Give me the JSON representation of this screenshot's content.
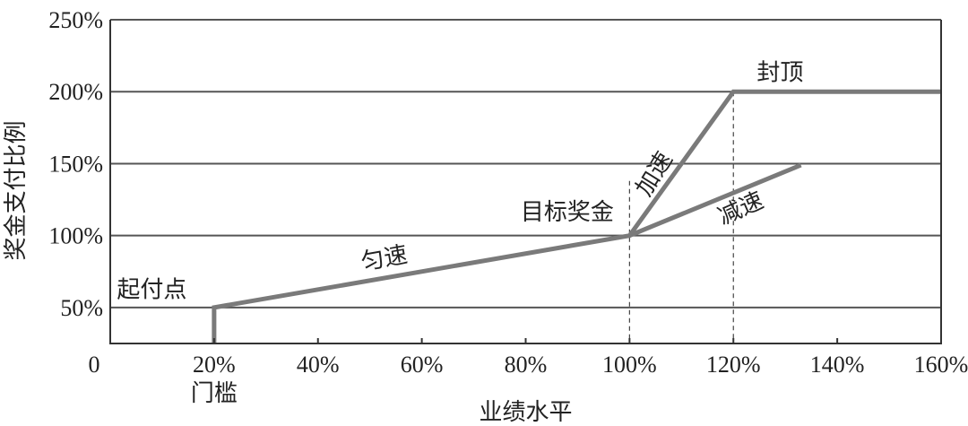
{
  "chart_data": {
    "type": "line",
    "xlabel": "业绩水平",
    "ylabel": "奖金支付比例",
    "xlim": [
      0,
      160
    ],
    "ylim": [
      25,
      250
    ],
    "x_ticks": [
      "0",
      "20%",
      "40%",
      "60%",
      "80%",
      "100%",
      "120%",
      "140%",
      "160%"
    ],
    "x_tick_values": [
      0,
      20,
      40,
      60,
      80,
      100,
      120,
      140,
      160
    ],
    "x_sublabels": [
      {
        "x": 20,
        "text": "门槛"
      }
    ],
    "y_ticks": [
      "50%",
      "100%",
      "150%",
      "200%",
      "250%"
    ],
    "y_tick_values": [
      50,
      100,
      150,
      200,
      250
    ],
    "grid": "horizontal",
    "series": [
      {
        "label": "",
        "points": [
          [
            20,
            25
          ],
          [
            20,
            50
          ],
          [
            100,
            100
          ],
          [
            120,
            200
          ],
          [
            160,
            200
          ]
        ]
      },
      {
        "label": "",
        "points": [
          [
            100,
            100
          ],
          [
            133,
            149
          ]
        ]
      }
    ],
    "guides": [
      {
        "x": 100,
        "y_from": 25,
        "y_to": 138
      },
      {
        "x": 120,
        "y_from": 25,
        "y_to": 200
      }
    ],
    "annotations": [
      {
        "text": "起付点",
        "x": 8,
        "y": 57,
        "rotate": 0
      },
      {
        "text": "匀速",
        "x": 53,
        "y": 79,
        "rotate": -10
      },
      {
        "text": "目标奖金",
        "x": 88,
        "y": 111,
        "rotate": 0
      },
      {
        "text": "加速",
        "x": 106,
        "y": 140,
        "rotate": -58
      },
      {
        "text": "减速",
        "x": 122,
        "y": 114,
        "rotate": -24
      },
      {
        "text": "封顶",
        "x": 129,
        "y": 208,
        "rotate": 0
      }
    ]
  }
}
